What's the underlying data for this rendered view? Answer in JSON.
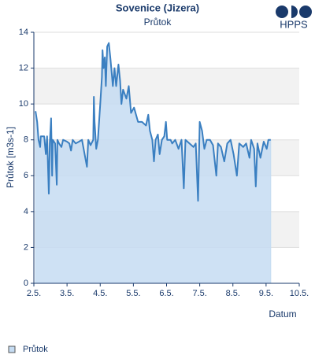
{
  "chart_data": {
    "type": "area",
    "title": "Sovenice (Jizera)",
    "subtitle": "Průtok",
    "y_label": "Průtok [m3s-1]",
    "x_label": "Datum",
    "logo": "HPPS",
    "xlim": [
      2,
      10
    ],
    "ylim": [
      0,
      14
    ],
    "xticks": [
      {
        "value": 2,
        "label": "2.5."
      },
      {
        "value": 3,
        "label": "3.5."
      },
      {
        "value": 4,
        "label": "4.5."
      },
      {
        "value": 5,
        "label": "5.5."
      },
      {
        "value": 6,
        "label": "6.5."
      },
      {
        "value": 7,
        "label": "7.5."
      },
      {
        "value": 8,
        "label": "8.5."
      },
      {
        "value": 9,
        "label": "9.5."
      },
      {
        "value": 10,
        "label": "10.5."
      }
    ],
    "yticks": [
      0,
      2,
      4,
      6,
      8,
      10,
      12,
      14
    ],
    "grid": true,
    "legend": "bottom-left",
    "x": [
      2.05,
      2.1,
      2.14,
      2.19,
      2.21,
      2.31,
      2.36,
      2.4,
      2.45,
      2.48,
      2.52,
      2.55,
      2.57,
      2.64,
      2.69,
      2.71,
      2.76,
      2.83,
      2.88,
      3.0,
      3.07,
      3.12,
      3.17,
      3.26,
      3.36,
      3.45,
      3.6,
      3.64,
      3.71,
      3.79,
      3.81,
      3.83,
      3.88,
      3.93,
      4.0,
      4.05,
      4.07,
      4.1,
      4.14,
      4.17,
      4.21,
      4.26,
      4.31,
      4.38,
      4.43,
      4.48,
      4.55,
      4.6,
      4.64,
      4.69,
      4.79,
      4.86,
      4.93,
      5.02,
      5.14,
      5.26,
      5.38,
      5.45,
      5.5,
      5.57,
      5.62,
      5.67,
      5.74,
      5.79,
      5.86,
      5.93,
      5.98,
      6.02,
      6.12,
      6.17,
      6.26,
      6.36,
      6.45,
      6.52,
      6.57,
      6.69,
      6.81,
      6.88,
      6.95,
      7.0,
      7.07,
      7.14,
      7.21,
      7.31,
      7.4,
      7.5,
      7.55,
      7.64,
      7.74,
      7.83,
      7.93,
      8.02,
      8.12,
      8.19,
      8.31,
      8.4,
      8.5,
      8.55,
      8.64,
      8.69,
      8.74,
      8.83,
      8.93,
      9.02,
      9.07,
      9.14
    ],
    "series": [
      {
        "name": "Průtok",
        "color": "#3a7fc1",
        "fill": "#c5dcf2",
        "values": [
          9.6,
          9.0,
          8.0,
          7.6,
          8.2,
          8.2,
          7.2,
          8.2,
          5.0,
          7.8,
          9.2,
          6.0,
          8.0,
          7.8,
          5.5,
          8.0,
          7.8,
          7.6,
          8.0,
          7.9,
          7.8,
          7.4,
          8.0,
          7.8,
          7.9,
          8.0,
          6.5,
          8.0,
          7.7,
          8.0,
          10.4,
          9.0,
          7.5,
          8.0,
          10.0,
          11.5,
          13.0,
          12.0,
          12.6,
          11.0,
          13.2,
          13.4,
          12.5,
          11.0,
          12.0,
          11.0,
          12.2,
          11.3,
          10.0,
          10.8,
          10.3,
          11.0,
          9.5,
          9.8,
          9.0,
          9.0,
          8.8,
          9.4,
          8.5,
          8.0,
          6.8,
          8.0,
          8.3,
          7.2,
          8.0,
          8.2,
          9.0,
          8.0,
          8.0,
          7.8,
          8.0,
          7.5,
          8.0,
          5.3,
          8.0,
          7.8,
          7.6,
          7.8,
          4.6,
          9.0,
          8.5,
          7.5,
          8.0,
          8.0,
          7.7,
          6.0,
          7.8,
          7.6,
          6.8,
          7.8,
          8.0,
          7.2,
          6.0,
          7.8,
          7.6,
          7.8,
          7.0,
          8.0,
          7.5,
          5.4,
          7.8,
          7.0,
          7.9,
          7.5,
          8.0,
          8.0
        ]
      }
    ]
  }
}
